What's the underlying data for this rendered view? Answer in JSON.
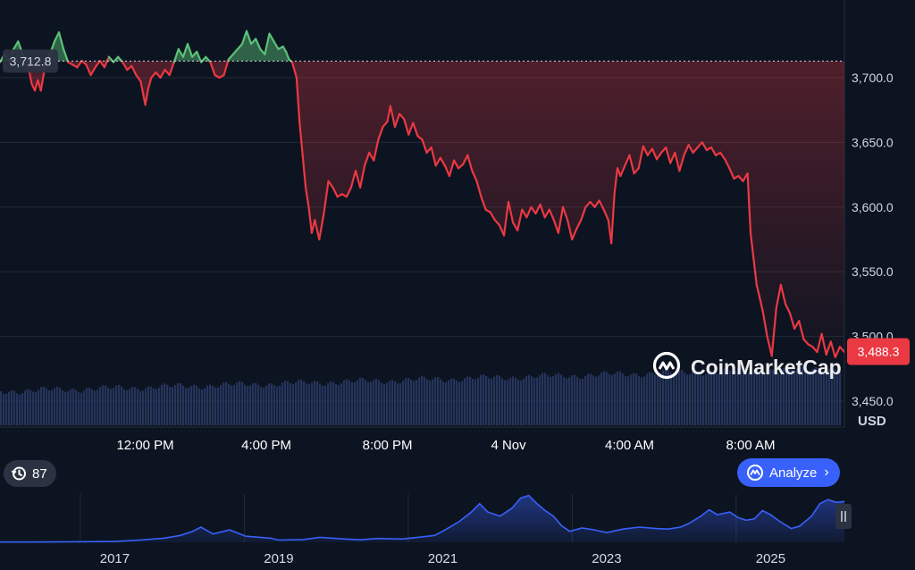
{
  "chart_data": [
    {
      "type": "line",
      "currency": "USD",
      "y_ticks": [
        "3,700.0",
        "3,650.0",
        "3,600.0",
        "3,550.0",
        "3,500.0",
        "3,450.0"
      ],
      "y_values": [
        3700,
        3650,
        3600,
        3550,
        3500,
        3450
      ],
      "ylim": [
        3430,
        3760
      ],
      "x_ticks": [
        "12:00 PM",
        "4:00 PM",
        "8:00 PM",
        "4 Nov",
        "4:00 AM",
        "8:00 AM"
      ],
      "x_tick_hours": [
        12,
        16,
        20,
        24,
        28,
        32
      ],
      "x_range_hours": [
        7.2,
        35.1
      ],
      "reference_price": 3712.8,
      "reference_label": "3,712.8",
      "last_price": 3488.3,
      "last_label": "3,488.3",
      "up_color": "#5bc178",
      "down_color": "#ea3943",
      "price_points": [
        [
          7.2,
          3712
        ],
        [
          7.35,
          3718
        ],
        [
          7.5,
          3712
        ],
        [
          7.65,
          3722
        ],
        [
          7.8,
          3728
        ],
        [
          7.95,
          3718
        ],
        [
          8.1,
          3712
        ],
        [
          8.25,
          3695
        ],
        [
          8.35,
          3690
        ],
        [
          8.45,
          3698
        ],
        [
          8.55,
          3690
        ],
        [
          8.7,
          3710
        ],
        [
          8.85,
          3718
        ],
        [
          9.0,
          3728
        ],
        [
          9.15,
          3735
        ],
        [
          9.3,
          3722
        ],
        [
          9.45,
          3712
        ],
        [
          9.6,
          3710
        ],
        [
          9.75,
          3708
        ],
        [
          9.9,
          3713
        ],
        [
          10.05,
          3710
        ],
        [
          10.2,
          3702
        ],
        [
          10.35,
          3708
        ],
        [
          10.5,
          3713
        ],
        [
          10.65,
          3708
        ],
        [
          10.8,
          3716
        ],
        [
          10.95,
          3712
        ],
        [
          11.1,
          3716
        ],
        [
          11.25,
          3712
        ],
        [
          11.4,
          3706
        ],
        [
          11.55,
          3709
        ],
        [
          11.7,
          3702
        ],
        [
          11.85,
          3697
        ],
        [
          12.0,
          3679
        ],
        [
          12.1,
          3692
        ],
        [
          12.2,
          3700
        ],
        [
          12.35,
          3704
        ],
        [
          12.5,
          3700
        ],
        [
          12.65,
          3706
        ],
        [
          12.8,
          3702
        ],
        [
          12.95,
          3712
        ],
        [
          13.1,
          3722
        ],
        [
          13.25,
          3716
        ],
        [
          13.4,
          3726
        ],
        [
          13.55,
          3716
        ],
        [
          13.7,
          3720
        ],
        [
          13.85,
          3712
        ],
        [
          14.0,
          3716
        ],
        [
          14.15,
          3712
        ],
        [
          14.3,
          3702
        ],
        [
          14.45,
          3700
        ],
        [
          14.6,
          3702
        ],
        [
          14.75,
          3714
        ],
        [
          14.9,
          3718
        ],
        [
          15.05,
          3722
        ],
        [
          15.2,
          3726
        ],
        [
          15.35,
          3736
        ],
        [
          15.5,
          3726
        ],
        [
          15.65,
          3730
        ],
        [
          15.8,
          3722
        ],
        [
          15.95,
          3718
        ],
        [
          16.1,
          3734
        ],
        [
          16.25,
          3728
        ],
        [
          16.4,
          3722
        ],
        [
          16.55,
          3724
        ],
        [
          16.65,
          3720
        ],
        [
          16.75,
          3714
        ],
        [
          16.85,
          3712
        ],
        [
          17.0,
          3700
        ],
        [
          17.1,
          3665
        ],
        [
          17.2,
          3640
        ],
        [
          17.3,
          3615
        ],
        [
          17.4,
          3600
        ],
        [
          17.5,
          3580
        ],
        [
          17.6,
          3590
        ],
        [
          17.75,
          3575
        ],
        [
          17.9,
          3595
        ],
        [
          18.05,
          3620
        ],
        [
          18.2,
          3615
        ],
        [
          18.35,
          3608
        ],
        [
          18.5,
          3610
        ],
        [
          18.65,
          3608
        ],
        [
          18.8,
          3615
        ],
        [
          18.95,
          3628
        ],
        [
          19.1,
          3615
        ],
        [
          19.25,
          3632
        ],
        [
          19.4,
          3642
        ],
        [
          19.55,
          3636
        ],
        [
          19.7,
          3652
        ],
        [
          19.85,
          3662
        ],
        [
          20.0,
          3666
        ],
        [
          20.1,
          3678
        ],
        [
          20.25,
          3662
        ],
        [
          20.4,
          3672
        ],
        [
          20.55,
          3668
        ],
        [
          20.7,
          3656
        ],
        [
          20.85,
          3665
        ],
        [
          21.0,
          3655
        ],
        [
          21.15,
          3652
        ],
        [
          21.3,
          3642
        ],
        [
          21.45,
          3646
        ],
        [
          21.6,
          3632
        ],
        [
          21.75,
          3638
        ],
        [
          21.9,
          3632
        ],
        [
          22.05,
          3624
        ],
        [
          22.2,
          3636
        ],
        [
          22.35,
          3630
        ],
        [
          22.5,
          3633
        ],
        [
          22.65,
          3640
        ],
        [
          22.8,
          3628
        ],
        [
          22.95,
          3620
        ],
        [
          23.1,
          3608
        ],
        [
          23.25,
          3598
        ],
        [
          23.4,
          3596
        ],
        [
          23.55,
          3590
        ],
        [
          23.7,
          3586
        ],
        [
          23.85,
          3578
        ],
        [
          24.0,
          3604
        ],
        [
          24.15,
          3588
        ],
        [
          24.3,
          3582
        ],
        [
          24.45,
          3598
        ],
        [
          24.6,
          3592
        ],
        [
          24.75,
          3600
        ],
        [
          24.9,
          3595
        ],
        [
          25.05,
          3602
        ],
        [
          25.2,
          3592
        ],
        [
          25.35,
          3598
        ],
        [
          25.5,
          3590
        ],
        [
          25.65,
          3580
        ],
        [
          25.8,
          3600
        ],
        [
          25.95,
          3590
        ],
        [
          26.1,
          3575
        ],
        [
          26.25,
          3583
        ],
        [
          26.4,
          3590
        ],
        [
          26.55,
          3600
        ],
        [
          26.7,
          3604
        ],
        [
          26.85,
          3600
        ],
        [
          27.0,
          3605
        ],
        [
          27.15,
          3598
        ],
        [
          27.3,
          3590
        ],
        [
          27.4,
          3572
        ],
        [
          27.5,
          3610
        ],
        [
          27.6,
          3630
        ],
        [
          27.7,
          3624
        ],
        [
          27.85,
          3632
        ],
        [
          28.0,
          3640
        ],
        [
          28.15,
          3626
        ],
        [
          28.3,
          3630
        ],
        [
          28.45,
          3647
        ],
        [
          28.6,
          3640
        ],
        [
          28.75,
          3645
        ],
        [
          28.9,
          3637
        ],
        [
          29.05,
          3642
        ],
        [
          29.2,
          3646
        ],
        [
          29.35,
          3634
        ],
        [
          29.5,
          3642
        ],
        [
          29.65,
          3628
        ],
        [
          29.8,
          3640
        ],
        [
          29.95,
          3648
        ],
        [
          30.1,
          3642
        ],
        [
          30.25,
          3646
        ],
        [
          30.4,
          3650
        ],
        [
          30.55,
          3644
        ],
        [
          30.7,
          3646
        ],
        [
          30.85,
          3640
        ],
        [
          31.0,
          3642
        ],
        [
          31.15,
          3637
        ],
        [
          31.3,
          3630
        ],
        [
          31.45,
          3622
        ],
        [
          31.6,
          3624
        ],
        [
          31.75,
          3620
        ],
        [
          31.9,
          3626
        ],
        [
          32.0,
          3580
        ],
        [
          32.1,
          3560
        ],
        [
          32.2,
          3540
        ],
        [
          32.3,
          3530
        ],
        [
          32.4,
          3520
        ],
        [
          32.55,
          3500
        ],
        [
          32.7,
          3485
        ],
        [
          32.85,
          3522
        ],
        [
          33.0,
          3540
        ],
        [
          33.15,
          3525
        ],
        [
          33.3,
          3518
        ],
        [
          33.45,
          3506
        ],
        [
          33.6,
          3512
        ],
        [
          33.75,
          3498
        ],
        [
          33.9,
          3494
        ],
        [
          34.05,
          3492
        ],
        [
          34.2,
          3488
        ],
        [
          34.35,
          3502
        ],
        [
          34.5,
          3486
        ],
        [
          34.65,
          3496
        ],
        [
          34.8,
          3484
        ],
        [
          34.95,
          3492
        ],
        [
          35.1,
          3488
        ]
      ]
    },
    {
      "type": "area",
      "x_ticks": [
        "2017",
        "2019",
        "2021",
        "2023",
        "2025"
      ],
      "x_tick_years": [
        2017,
        2019,
        2021,
        2023,
        2025
      ],
      "x_range_years": [
        2015.6,
        2025.9
      ],
      "history_points": [
        [
          2015.6,
          1
        ],
        [
          2016.0,
          1
        ],
        [
          2016.5,
          2
        ],
        [
          2017.0,
          3
        ],
        [
          2017.3,
          8
        ],
        [
          2017.6,
          15
        ],
        [
          2017.8,
          25
        ],
        [
          2017.95,
          40
        ],
        [
          2018.05,
          55
        ],
        [
          2018.2,
          30
        ],
        [
          2018.4,
          45
        ],
        [
          2018.6,
          22
        ],
        [
          2018.9,
          15
        ],
        [
          2019.0,
          8
        ],
        [
          2019.3,
          10
        ],
        [
          2019.5,
          18
        ],
        [
          2019.8,
          12
        ],
        [
          2020.0,
          9
        ],
        [
          2020.2,
          14
        ],
        [
          2020.5,
          12
        ],
        [
          2020.7,
          18
        ],
        [
          2020.9,
          25
        ],
        [
          2021.0,
          40
        ],
        [
          2021.2,
          75
        ],
        [
          2021.35,
          110
        ],
        [
          2021.45,
          140
        ],
        [
          2021.55,
          110
        ],
        [
          2021.7,
          95
        ],
        [
          2021.85,
          125
        ],
        [
          2021.95,
          160
        ],
        [
          2022.05,
          170
        ],
        [
          2022.15,
          140
        ],
        [
          2022.25,
          115
        ],
        [
          2022.35,
          95
        ],
        [
          2022.45,
          60
        ],
        [
          2022.55,
          40
        ],
        [
          2022.7,
          52
        ],
        [
          2022.85,
          45
        ],
        [
          2023.0,
          35
        ],
        [
          2023.2,
          48
        ],
        [
          2023.4,
          55
        ],
        [
          2023.6,
          50
        ],
        [
          2023.75,
          48
        ],
        [
          2023.9,
          55
        ],
        [
          2024.0,
          68
        ],
        [
          2024.15,
          95
        ],
        [
          2024.25,
          118
        ],
        [
          2024.35,
          100
        ],
        [
          2024.5,
          110
        ],
        [
          2024.6,
          90
        ],
        [
          2024.7,
          80
        ],
        [
          2024.8,
          85
        ],
        [
          2024.9,
          115
        ],
        [
          2025.0,
          100
        ],
        [
          2025.1,
          78
        ],
        [
          2025.25,
          50
        ],
        [
          2025.35,
          58
        ],
        [
          2025.5,
          95
        ],
        [
          2025.6,
          140
        ],
        [
          2025.7,
          155
        ],
        [
          2025.8,
          145
        ],
        [
          2025.9,
          148
        ]
      ]
    }
  ],
  "labels": {
    "currency": "USD",
    "watermark": "CoinMarketCap",
    "history_count": "87",
    "analyze": "Analyze"
  }
}
